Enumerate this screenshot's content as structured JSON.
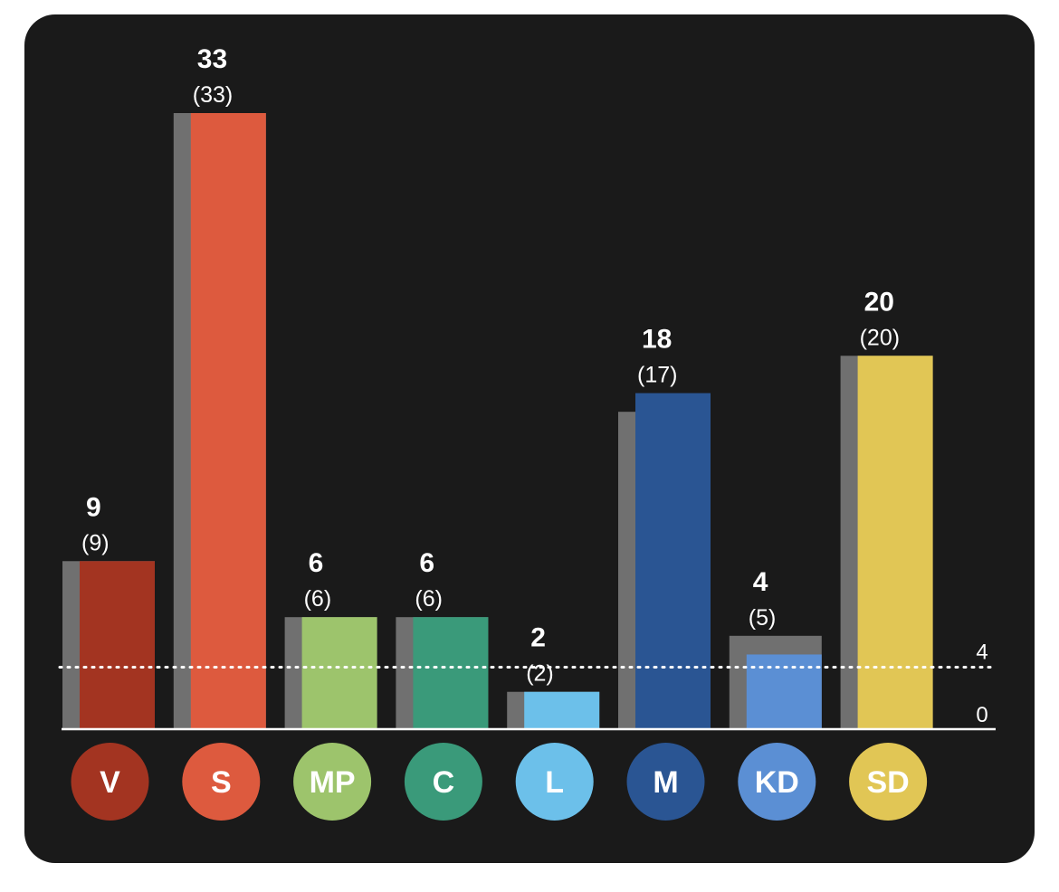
{
  "chart_data": {
    "type": "bar",
    "categories": [
      "V",
      "S",
      "MP",
      "C",
      "L",
      "M",
      "KD",
      "SD"
    ],
    "series": [
      {
        "values": [
          9,
          33,
          6,
          6,
          2,
          18,
          4,
          20
        ]
      },
      {
        "values": [
          9,
          33,
          6,
          6,
          2,
          17,
          5,
          20
        ]
      }
    ],
    "value_labels": [
      "9",
      "33",
      "6",
      "6",
      "2",
      "18",
      "4",
      "20"
    ],
    "previous_labels": [
      "(9)",
      "(33)",
      "(6)",
      "(6)",
      "(2)",
      "(17)",
      "(5)",
      "(20)"
    ],
    "colors": [
      "#a33421",
      "#dd5a3e",
      "#9dc46c",
      "#3a9a7a",
      "#6cc0ea",
      "#2a5593",
      "#5b8fd4",
      "#e1c655"
    ],
    "previous_color": "#707070",
    "threshold": {
      "value": 4,
      "label": "4",
      "style": "dotted"
    },
    "baseline_label": "0",
    "ylim": [
      0,
      33
    ]
  }
}
